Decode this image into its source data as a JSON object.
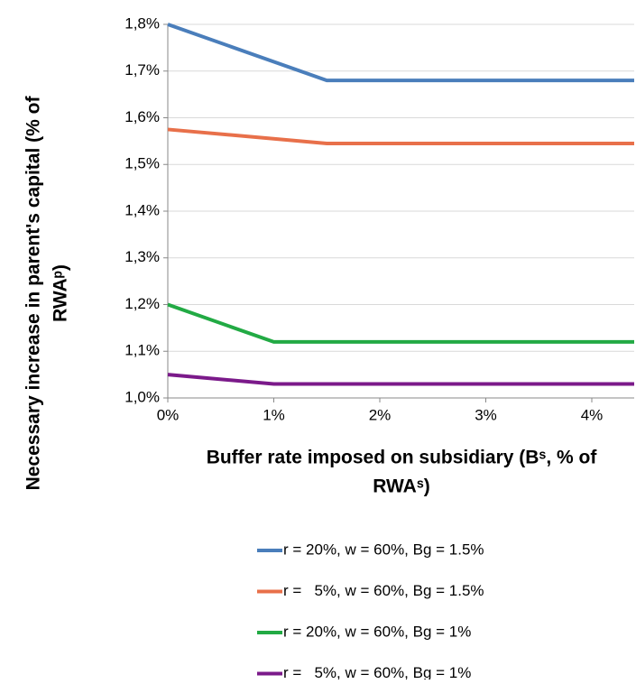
{
  "chart_data": {
    "type": "line",
    "x_label": [
      "Buffer rate imposed on subsidiary (Bˢ, % of",
      "RWAˢ)"
    ],
    "y_label": [
      "Necessary increase in parent's capital (% of",
      "RWAᵖ)"
    ],
    "xlim": [
      0,
      4.4
    ],
    "xticks": [
      {
        "value": 0,
        "label": "0%"
      },
      {
        "value": 1,
        "label": "1%"
      },
      {
        "value": 2,
        "label": "2%"
      },
      {
        "value": 3,
        "label": "3%"
      },
      {
        "value": 4,
        "label": "4%"
      }
    ],
    "ylim": [
      1.0,
      1.8
    ],
    "yticks": [
      {
        "value": 1.0,
        "label": "1,0%"
      },
      {
        "value": 1.1,
        "label": "1,1%"
      },
      {
        "value": 1.2,
        "label": "1,2%"
      },
      {
        "value": 1.3,
        "label": "1,3%"
      },
      {
        "value": 1.4,
        "label": "1,4%"
      },
      {
        "value": 1.5,
        "label": "1,5%"
      },
      {
        "value": 1.6,
        "label": "1,6%"
      },
      {
        "value": 1.7,
        "label": "1,7%"
      },
      {
        "value": 1.8,
        "label": "1,8%"
      }
    ],
    "grid": true,
    "legend": "bottom",
    "series": [
      {
        "name": "r = 20%, w = 60%, Bg = 1.5%",
        "color": "#4a7ebb",
        "x": [
          0,
          1.5,
          4.4
        ],
        "values": [
          1.8,
          1.68,
          1.68
        ]
      },
      {
        "name": "r =   5%, w = 60%, Bg = 1.5%",
        "color": "#e8704a",
        "x": [
          0,
          1.5,
          4.4
        ],
        "values": [
          1.575,
          1.545,
          1.545
        ]
      },
      {
        "name": "r = 20%, w = 60%, Bg = 1%",
        "color": "#22aa44",
        "x": [
          0,
          1,
          4.4
        ],
        "values": [
          1.2,
          1.12,
          1.12
        ]
      },
      {
        "name": "r =   5%, w = 60%, Bg = 1%",
        "color": "#7b1a8a",
        "x": [
          0,
          1,
          4.4
        ],
        "values": [
          1.05,
          1.03,
          1.03
        ]
      }
    ]
  }
}
